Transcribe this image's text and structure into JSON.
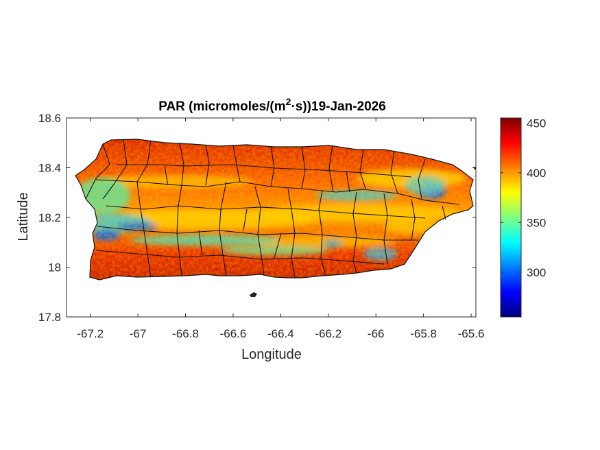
{
  "title_main": "PAR (micromoles/(m",
  "title_sup": "2",
  "title_tail": "·s))19-Jan-2026",
  "chart_data": {
    "type": "heatmap",
    "title": "PAR (micromoles/(m²·s))19-Jan-2026",
    "xlabel": "Longitude",
    "ylabel": "Latitude",
    "xlim": [
      -67.3,
      -65.58
    ],
    "ylim": [
      17.8,
      18.6
    ],
    "x_ticks": [
      -67.2,
      -67,
      -66.8,
      -66.6,
      -66.4,
      -66.2,
      -66,
      -65.8,
      -65.6
    ],
    "y_ticks": [
      17.8,
      18,
      18.2,
      18.4,
      18.6
    ],
    "x_tick_labels": [
      "-67.2",
      "-67",
      "-66.8",
      "-66.6",
      "-66.4",
      "-66.2",
      "-66",
      "-65.8",
      "-65.6"
    ],
    "y_tick_labels": [
      "17.8",
      "18",
      "18.2",
      "18.4",
      "18.6"
    ],
    "colormap": "jet",
    "clim": [
      255,
      455
    ],
    "colorbar_ticks": [
      300,
      350,
      400,
      450
    ],
    "colorbar_tick_labels": [
      "300",
      "350",
      "400",
      "450"
    ],
    "region": "Puerto Rico municipalities",
    "grid": false,
    "low_value_bands": [
      {
        "lon": [
          -67.25,
          -67.0
        ],
        "lat": [
          18.12,
          18.22
        ],
        "value": 300
      },
      {
        "lon": [
          -66.95,
          -66.4
        ],
        "lat": [
          18.08,
          18.16
        ],
        "value": 345
      },
      {
        "lon": [
          -66.3,
          -65.85
        ],
        "lat": [
          18.27,
          18.33
        ],
        "value": 330
      },
      {
        "lon": [
          -65.85,
          -65.75
        ],
        "lat": [
          18.25,
          18.33
        ],
        "value": 300
      }
    ]
  }
}
